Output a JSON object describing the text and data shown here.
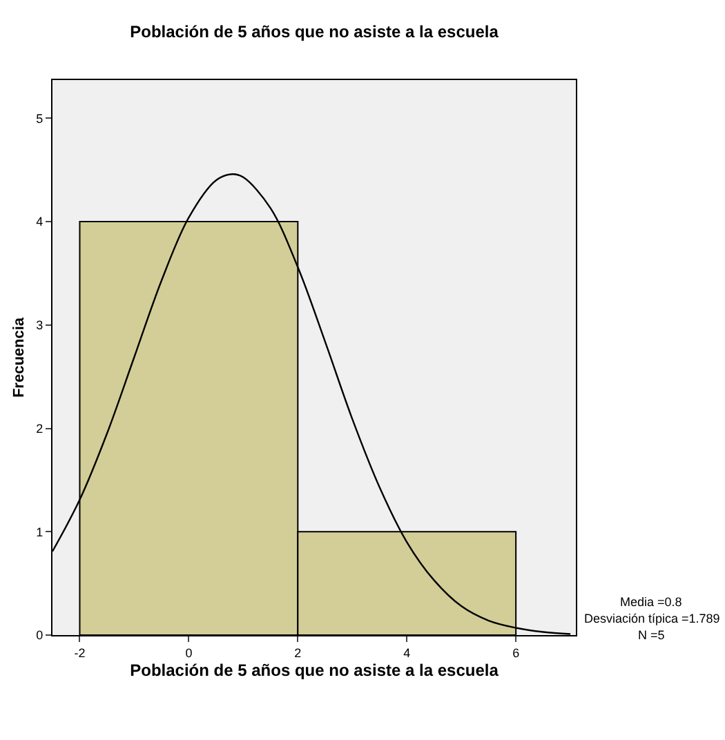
{
  "chart_data": {
    "type": "histogram",
    "title": "Población de 5 años que no asiste a la escuela",
    "xlabel": "Población de 5 años que no asiste a la escuela",
    "ylabel": "Frecuencia",
    "bins": [
      -2,
      2,
      6
    ],
    "values": [
      4,
      1
    ],
    "color": "#d3ce97",
    "series": [
      {
        "type": "line",
        "color": "#000000",
        "x": [
          -2.5,
          -2,
          -1.5,
          -1,
          -0.5,
          0,
          0.5,
          0.8,
          1,
          1.5,
          2,
          2.5,
          3,
          3.5,
          4,
          4.5,
          5,
          5.5,
          6,
          6.5,
          7
        ],
        "values": [
          0.81,
          1.31,
          1.95,
          2.69,
          3.43,
          4.04,
          4.4,
          4.46,
          4.43,
          4.13,
          3.56,
          2.84,
          2.09,
          1.43,
          0.9,
          0.53,
          0.28,
          0.14,
          0.07,
          0.03,
          0.01
        ]
      }
    ],
    "xlim": [
      -2.5,
      7.1
    ],
    "ylim": [
      0,
      5.37
    ],
    "xticks": [
      -2,
      0,
      2,
      4,
      6
    ],
    "yticks": [
      0,
      1,
      2,
      3,
      4,
      5
    ],
    "grid": false,
    "annotations": [
      "Media =0.8",
      "Desviación típica =1.789",
      "N =5"
    ]
  }
}
